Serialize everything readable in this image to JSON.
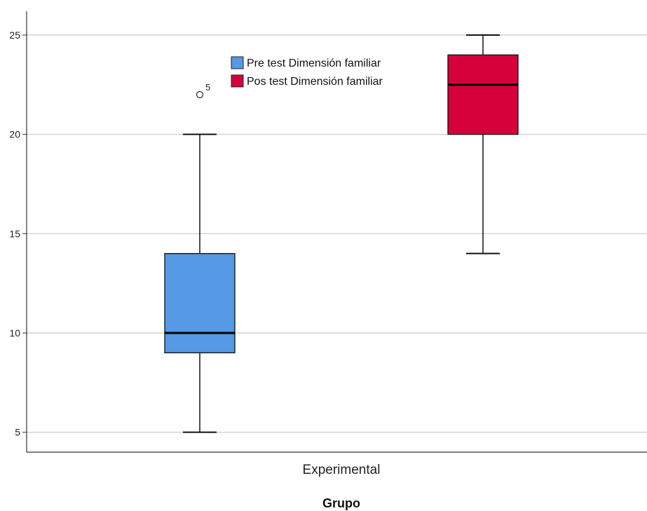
{
  "chart_data": {
    "type": "boxplot",
    "title": "",
    "xlabel": "Grupo",
    "ylabel": "",
    "categories": [
      "Experimental"
    ],
    "ylim": [
      4,
      26.2
    ],
    "yticks": [
      5,
      10,
      15,
      20,
      25
    ],
    "grid": "horizontal",
    "legend_position": "top-center",
    "series": [
      {
        "name": "Pre test Dimensión familiar",
        "color": "#5598e3",
        "min": 5,
        "q1": 9,
        "median": 10,
        "q3": 14,
        "max": 20,
        "outliers": [
          {
            "value": 22,
            "label": "5"
          }
        ]
      },
      {
        "name": "Pos test Dimensión familiar",
        "color": "#d6003a",
        "min": 14,
        "q1": 20,
        "median": 22.5,
        "q3": 24,
        "max": 25,
        "outliers": []
      }
    ]
  }
}
